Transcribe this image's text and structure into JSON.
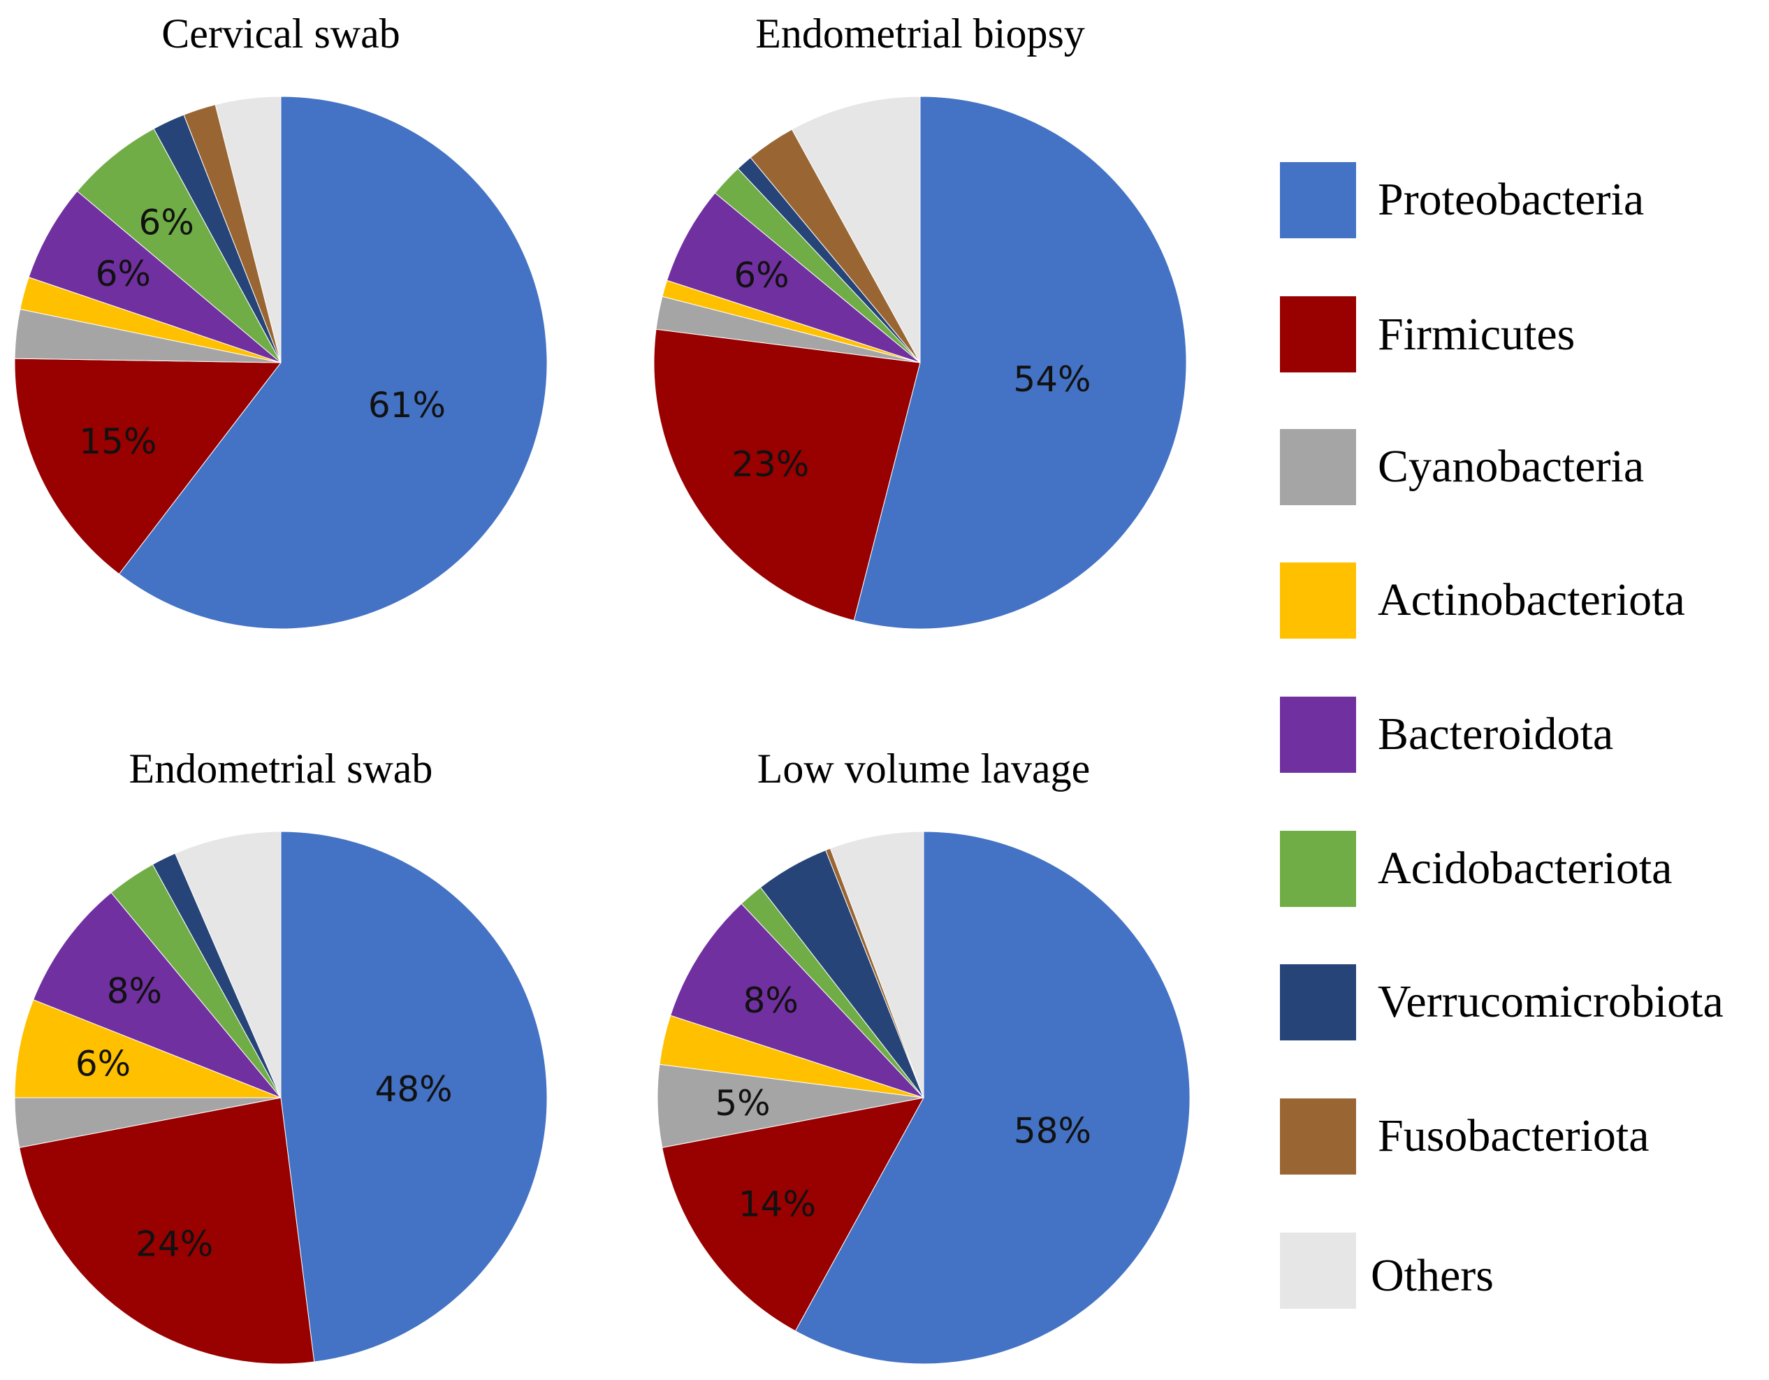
{
  "chart_data": [
    {
      "type": "pie",
      "title": "Cervical swab",
      "categories": [
        "Proteobacteria",
        "Firmicutes",
        "Cyanobacteria",
        "Actinobacteriota",
        "Bacteroidota",
        "Acidobacteriota",
        "Verrucomicrobiota",
        "Fusobacteriota",
        "Others"
      ],
      "values": [
        61,
        15,
        3,
        2,
        6,
        6,
        2,
        2,
        4
      ],
      "labels": [
        "61%",
        "15%",
        "",
        "",
        "6%",
        "6%",
        "",
        "",
        ""
      ]
    },
    {
      "type": "pie",
      "title": "Endometrial biopsy",
      "categories": [
        "Proteobacteria",
        "Firmicutes",
        "Cyanobacteria",
        "Actinobacteriota",
        "Bacteroidota",
        "Acidobacteriota",
        "Verrucomicrobiota",
        "Fusobacteriota",
        "Others"
      ],
      "values": [
        54,
        23,
        2,
        1,
        6,
        2,
        1,
        3,
        8
      ],
      "labels": [
        "54%",
        "23%",
        "",
        "",
        "6%",
        "",
        "",
        "",
        ""
      ]
    },
    {
      "type": "pie",
      "title": "Endometrial swab",
      "categories": [
        "Proteobacteria",
        "Firmicutes",
        "Cyanobacteria",
        "Actinobacteriota",
        "Bacteroidota",
        "Acidobacteriota",
        "Verrucomicrobiota",
        "Fusobacteriota",
        "Others"
      ],
      "values": [
        48,
        24,
        3,
        6,
        8,
        3,
        1.5,
        0,
        6.5
      ],
      "labels": [
        "48%",
        "24%",
        "",
        "6%",
        "8%",
        "",
        "",
        "",
        ""
      ]
    },
    {
      "type": "pie",
      "title": "Low volume lavage",
      "categories": [
        "Proteobacteria",
        "Firmicutes",
        "Cyanobacteria",
        "Actinobacteriota",
        "Bacteroidota",
        "Acidobacteriota",
        "Verrucomicrobiota",
        "Fusobacteriota",
        "Others"
      ],
      "values": [
        58,
        14,
        5,
        3,
        8,
        1.5,
        4.5,
        0.3,
        5.7
      ],
      "labels": [
        "58%",
        "14%",
        "5%",
        "",
        "8%",
        "",
        "",
        "",
        ""
      ]
    }
  ],
  "legend": {
    "items": [
      {
        "label": "Proteobacteria",
        "color": "#4472C4"
      },
      {
        "label": "Firmicutes",
        "color": "#990000"
      },
      {
        "label": "Cyanobacteria",
        "color": "#A5A5A5"
      },
      {
        "label": "Actinobacteriota",
        "color": "#FFC000"
      },
      {
        "label": "Bacteroidota",
        "color": "#7030A0"
      },
      {
        "label": "Acidobacteriota",
        "color": "#70AD47"
      },
      {
        "label": "Verrucomicrobiota",
        "color": "#264478"
      },
      {
        "label": "Fusobacteriota",
        "color": "#996633"
      },
      {
        "label": "Others",
        "color": "#E7E6E6"
      }
    ]
  }
}
